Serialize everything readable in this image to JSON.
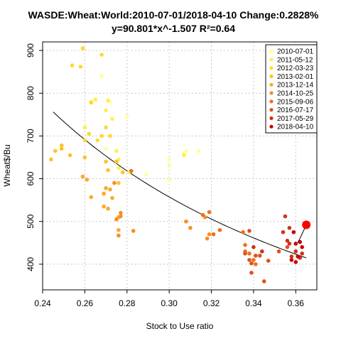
{
  "chart_data": {
    "type": "scatter",
    "title": "WASDE:Wheat:World:2010-07-01/2018-04-10 Change:0.2828%",
    "subtitle": "y=90.801*x^-1.507 R²=0.64",
    "xlabel": "Stock to Use ratio",
    "ylabel": "Wheat$/Bu",
    "xlim": [
      0.24,
      0.37
    ],
    "ylim": [
      340,
      920
    ],
    "x_ticks": [
      "0.24",
      "0.26",
      "0.28",
      "0.30",
      "0.32",
      "0.34",
      "0.36"
    ],
    "y_ticks": [
      "400",
      "500",
      "600",
      "700",
      "800",
      "900"
    ],
    "grid": true,
    "legend_position": "top-right",
    "legend": [
      {
        "label": "2010-07-01",
        "color": "#FFFF99"
      },
      {
        "label": "2011-05-12",
        "color": "#FFEE55"
      },
      {
        "label": "2012-03-23",
        "color": "#FFD92F"
      },
      {
        "label": "2013-02-01",
        "color": "#FEC22A"
      },
      {
        "label": "2013-12-14",
        "color": "#FDA92A"
      },
      {
        "label": "2014-10-25",
        "color": "#F88E24"
      },
      {
        "label": "2015-09-06",
        "color": "#EE7020"
      },
      {
        "label": "2016-07-17",
        "color": "#DF521C"
      },
      {
        "label": "2017-05-29",
        "color": "#CC3317"
      },
      {
        "label": "2018-04-10",
        "color": "#CC0000"
      }
    ],
    "fit": {
      "a": 90.801,
      "b": -1.507,
      "x_from": 0.245,
      "x_to": 0.365,
      "color": "#000000"
    },
    "series": [
      {
        "color": "#FFFF99",
        "points": [
          [
            0.268,
            840
          ],
          [
            0.272,
            780
          ],
          [
            0.28,
            745
          ],
          [
            0.3,
            645
          ],
          [
            0.3,
            630
          ],
          [
            0.307,
            660
          ],
          [
            0.308,
            665
          ],
          [
            0.314,
            665
          ],
          [
            0.27,
            670
          ],
          [
            0.289,
            610
          ],
          [
            0.3,
            597
          ]
        ]
      },
      {
        "color": "#FFEE55",
        "points": [
          [
            0.263,
            780
          ],
          [
            0.271,
            783
          ],
          [
            0.27,
            760
          ],
          [
            0.265,
            785
          ],
          [
            0.273,
            740
          ],
          [
            0.275,
            665
          ],
          [
            0.276,
            645
          ],
          [
            0.276,
            625
          ],
          [
            0.281,
            615
          ],
          [
            0.307,
            655
          ],
          [
            0.26,
            720
          ]
        ]
      },
      {
        "color": "#FFD92F",
        "points": [
          [
            0.259,
            905
          ],
          [
            0.268,
            890
          ],
          [
            0.254,
            865
          ],
          [
            0.258,
            862
          ],
          [
            0.263,
            778
          ],
          [
            0.262,
            705
          ],
          [
            0.266,
            690
          ],
          [
            0.27,
            720
          ],
          [
            0.268,
            700
          ],
          [
            0.272,
            700
          ],
          [
            0.26,
            690
          ]
        ]
      },
      {
        "color": "#FEC22A",
        "points": [
          [
            0.244,
            645
          ],
          [
            0.246,
            665
          ],
          [
            0.249,
            670
          ],
          [
            0.249,
            678
          ],
          [
            0.253,
            655
          ],
          [
            0.26,
            650
          ],
          [
            0.27,
            640
          ],
          [
            0.271,
            620
          ],
          [
            0.275,
            640
          ],
          [
            0.278,
            615
          ],
          [
            0.276,
            590
          ]
        ]
      },
      {
        "color": "#FDA92A",
        "points": [
          [
            0.259,
            605
          ],
          [
            0.261,
            598
          ],
          [
            0.269,
            565
          ],
          [
            0.27,
            578
          ],
          [
            0.272,
            575
          ],
          [
            0.273,
            555
          ],
          [
            0.263,
            557
          ],
          [
            0.269,
            535
          ],
          [
            0.271,
            530
          ],
          [
            0.276,
            510
          ],
          [
            0.276,
            480
          ]
        ]
      },
      {
        "color": "#F88E24",
        "points": [
          [
            0.274,
            590
          ],
          [
            0.275,
            505
          ],
          [
            0.276,
            467
          ],
          [
            0.277,
            520
          ],
          [
            0.283,
            478
          ],
          [
            0.277,
            512
          ],
          [
            0.308,
            500
          ],
          [
            0.31,
            485
          ],
          [
            0.317,
            510
          ],
          [
            0.319,
            470
          ],
          [
            0.318,
            460
          ]
        ]
      },
      {
        "color": "#EE7020",
        "points": [
          [
            0.282,
            618
          ],
          [
            0.316,
            515
          ],
          [
            0.319,
            522
          ],
          [
            0.321,
            470
          ],
          [
            0.324,
            480
          ],
          [
            0.335,
            475
          ],
          [
            0.336,
            445
          ],
          [
            0.336,
            430
          ],
          [
            0.338,
            425
          ],
          [
            0.34,
            410
          ],
          [
            0.341,
            400
          ]
        ]
      },
      {
        "color": "#DF521C",
        "points": [
          [
            0.336,
            425
          ],
          [
            0.338,
            478
          ],
          [
            0.338,
            410
          ],
          [
            0.339,
            402
          ],
          [
            0.339,
            380
          ],
          [
            0.341,
            420
          ],
          [
            0.343,
            420
          ],
          [
            0.345,
            360
          ],
          [
            0.347,
            408
          ],
          [
            0.352,
            430
          ],
          [
            0.356,
            440
          ]
        ]
      },
      {
        "color": "#CC3317",
        "points": [
          [
            0.34,
            440
          ],
          [
            0.344,
            430
          ],
          [
            0.354,
            475
          ],
          [
            0.355,
            512
          ],
          [
            0.357,
            485
          ],
          [
            0.356,
            455
          ],
          [
            0.358,
            418
          ],
          [
            0.36,
            430
          ],
          [
            0.362,
            415
          ],
          [
            0.363,
            425
          ],
          [
            0.357,
            448
          ]
        ]
      },
      {
        "color": "#CC0000",
        "points": [
          [
            0.358,
            410
          ],
          [
            0.359,
            475
          ],
          [
            0.36,
            448
          ],
          [
            0.361,
            418
          ],
          [
            0.362,
            452
          ],
          [
            0.36,
            405
          ],
          [
            0.363,
            440
          ]
        ]
      }
    ],
    "highlight": {
      "point": [
        0.365,
        492
      ],
      "from": [
        0.361,
        450
      ],
      "color": "#FF0000"
    }
  }
}
